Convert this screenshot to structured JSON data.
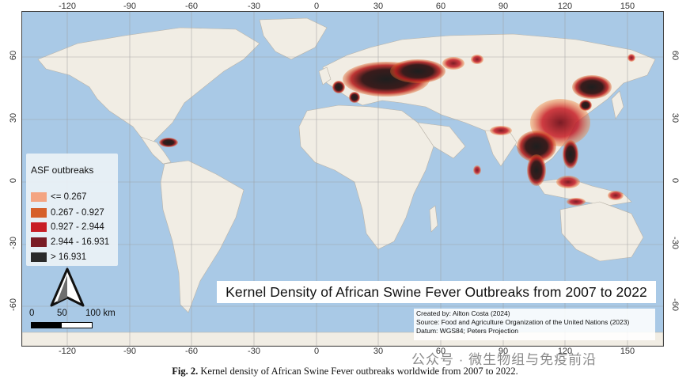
{
  "map": {
    "title": "Kernel Density of African Swine Fever Outbreaks from 2007 to 2022",
    "longitude_ticks": [
      "-120",
      "-90",
      "-60",
      "-30",
      "0",
      "30",
      "60",
      "90",
      "120",
      "150"
    ],
    "latitude_ticks": [
      "60",
      "30",
      "0",
      "-30",
      "-60"
    ],
    "ocean_color": "#a9c9e6",
    "land_color": "#f1ede4"
  },
  "legend": {
    "title": "ASF outbreaks",
    "items": [
      {
        "label": "<= 0.267",
        "color": "#f4a582"
      },
      {
        "label": "0.267 - 0.927",
        "color": "#d6602a"
      },
      {
        "label": "0.927 - 2.944",
        "color": "#c81d25"
      },
      {
        "label": "2.944 - 16.931",
        "color": "#7a1c25"
      },
      {
        "label": "> 16.931",
        "color": "#2a2a2a"
      }
    ]
  },
  "scale_bar": {
    "labels": [
      "0",
      "50",
      "100 km"
    ]
  },
  "north_arrow": {
    "icon": "north-arrow-icon"
  },
  "credits": [
    "Created by: Ailton Costa (2024)",
    "Source: Food and Agriculture Organization of the United Nations (2023)",
    "Datum: WGS84; Peters Projection"
  ],
  "watermark": "公众号 · 微生物组与免疫前沿",
  "caption": {
    "label": "Fig. 2.",
    "text": "Kernel density of African Swine Fever outbreaks worldwide from 2007 to 2022."
  }
}
